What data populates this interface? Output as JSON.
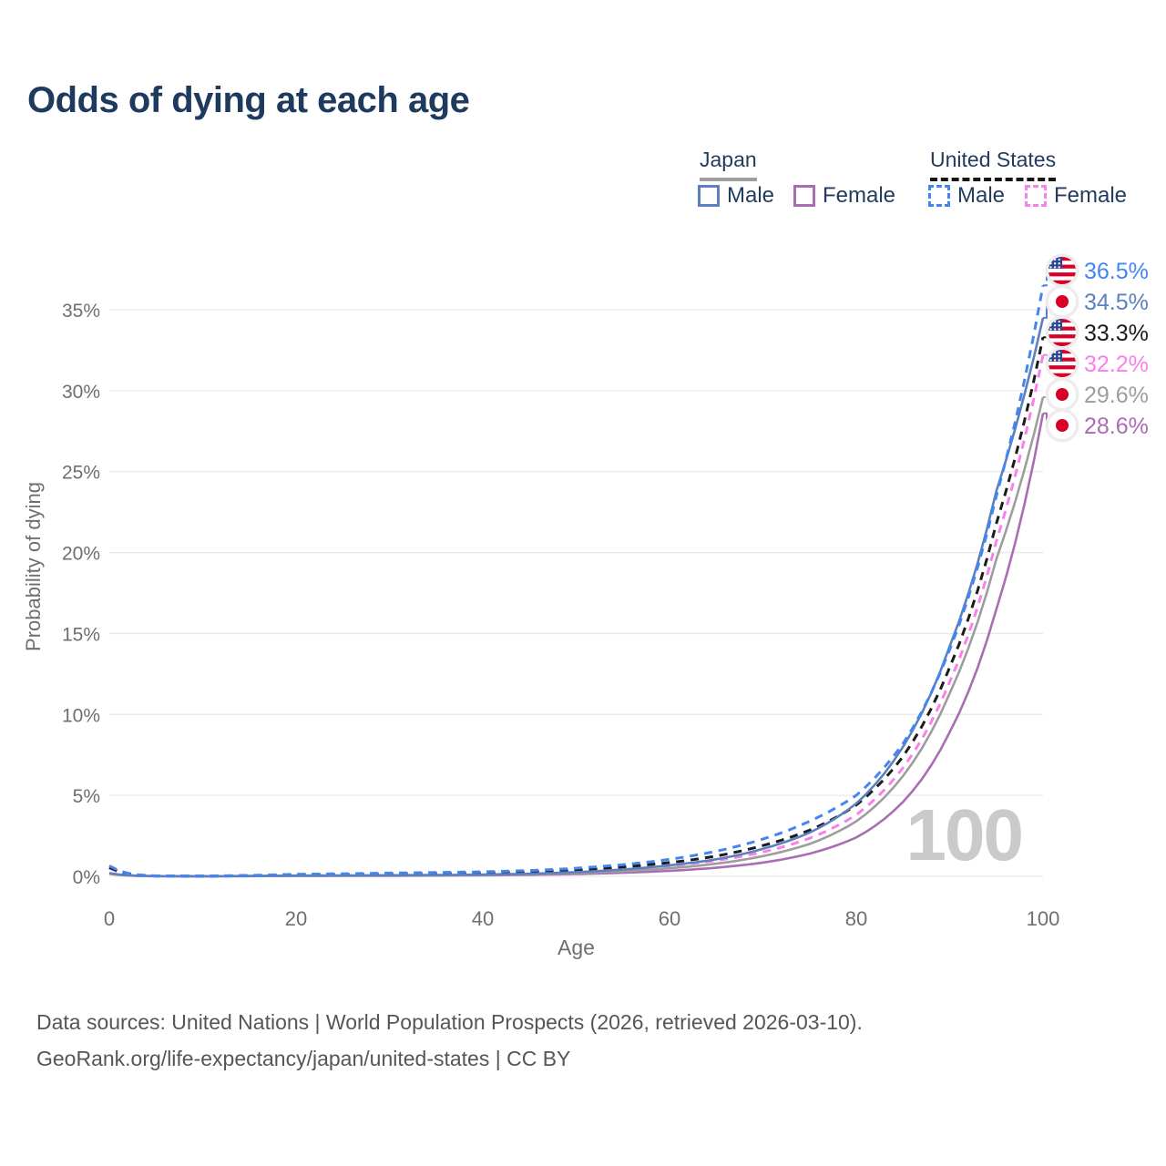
{
  "header": {
    "title": "Odds of dying at each age"
  },
  "legend": {
    "japan": {
      "label": "Japan",
      "male_label": "Male",
      "female_label": "Female"
    },
    "united_states": {
      "label": "United States",
      "male_label": "Male",
      "female_label": "Female"
    }
  },
  "footer": {
    "line1": "Data sources: United Nations | World Population Prospects (2026, retrieved 2026-03-10).",
    "line2": "GeoRank.org/life-expectancy/japan/united-states | CC BY"
  },
  "colors": {
    "title_text": "#1e3a5e",
    "legend_text": "#223c5e",
    "axis_text": "#6f6f6f",
    "gridline": "#e8e8e8",
    "watermark": "#cacaca",
    "footer_text": "#55565a",
    "japan_underline": "#9e9e9e",
    "us_underline": "#161616",
    "flag_red": "#d80027",
    "flag_blue": "#2e4593",
    "flag_badge": "#ededed"
  },
  "chart_data": {
    "type": "line",
    "title": "Odds of dying at each age",
    "xlabel": "Age",
    "ylabel": "Probability of dying",
    "xlim": [
      0,
      100
    ],
    "ylim": [
      0,
      37.5
    ],
    "grid": "horizontal",
    "age_indicator": "100",
    "x_ticks": [
      0,
      20,
      40,
      60,
      80,
      100
    ],
    "y_ticks": [
      {
        "value": 0,
        "label": "0%"
      },
      {
        "value": 5,
        "label": "5%"
      },
      {
        "value": 10,
        "label": "10%"
      },
      {
        "value": 15,
        "label": "15%"
      },
      {
        "value": 20,
        "label": "20%"
      },
      {
        "value": 25,
        "label": "25%"
      },
      {
        "value": 30,
        "label": "30%"
      },
      {
        "value": 35,
        "label": "35%"
      }
    ],
    "ages": [
      0,
      5,
      10,
      15,
      20,
      25,
      30,
      35,
      40,
      45,
      50,
      55,
      60,
      65,
      70,
      75,
      80,
      85,
      90,
      95,
      100
    ],
    "series": [
      {
        "id": "us-male",
        "group": "United States",
        "sex": "Male",
        "flag": "us",
        "style": "dashed",
        "color": "#4285f4",
        "end_label": "36.5%",
        "end_value": 36.5,
        "values": [
          0.65,
          0.03,
          0.02,
          0.06,
          0.13,
          0.16,
          0.2,
          0.24,
          0.28,
          0.36,
          0.5,
          0.72,
          1.05,
          1.55,
          2.3,
          3.4,
          5.0,
          8.2,
          14.0,
          23.5,
          36.5
        ]
      },
      {
        "id": "japan-male",
        "group": "Japan",
        "sex": "Male",
        "flag": "japan",
        "style": "solid",
        "color": "#5c80bd",
        "end_label": "34.5%",
        "end_value": 34.5,
        "values": [
          0.2,
          0.012,
          0.009,
          0.02,
          0.045,
          0.055,
          0.065,
          0.08,
          0.11,
          0.16,
          0.26,
          0.42,
          0.68,
          1.05,
          1.7,
          2.7,
          4.5,
          8.0,
          14.2,
          23.8,
          34.5
        ]
      },
      {
        "id": "us-all",
        "group": "United States",
        "sex": "All",
        "flag": "us",
        "style": "dashed",
        "color": "#1c1c1c",
        "end_label": "33.3%",
        "end_value": 33.3,
        "values": [
          0.55,
          0.025,
          0.016,
          0.045,
          0.09,
          0.12,
          0.15,
          0.18,
          0.22,
          0.29,
          0.4,
          0.58,
          0.85,
          1.25,
          1.9,
          2.85,
          4.4,
          7.4,
          12.9,
          21.8,
          33.3
        ]
      },
      {
        "id": "us-female",
        "group": "United States",
        "sex": "Female",
        "flag": "us",
        "style": "dashed",
        "color": "#f980ea",
        "end_label": "32.2%",
        "end_value": 32.2,
        "values": [
          0.5,
          0.02,
          0.013,
          0.03,
          0.055,
          0.07,
          0.09,
          0.12,
          0.16,
          0.22,
          0.31,
          0.44,
          0.65,
          0.98,
          1.5,
          2.35,
          3.8,
          6.7,
          12.0,
          20.7,
          32.2
        ]
      },
      {
        "id": "japan-all",
        "group": "Japan",
        "sex": "All",
        "flag": "japan",
        "style": "solid",
        "color": "#9d9d9d",
        "end_label": "29.6%",
        "end_value": 29.6,
        "values": [
          0.18,
          0.01,
          0.008,
          0.016,
          0.032,
          0.04,
          0.048,
          0.06,
          0.085,
          0.125,
          0.2,
          0.32,
          0.5,
          0.78,
          1.25,
          2.0,
          3.4,
          6.2,
          11.3,
          19.6,
          29.6
        ]
      },
      {
        "id": "japan-female",
        "group": "Japan",
        "sex": "Female",
        "flag": "japan",
        "style": "solid",
        "color": "#aa6db3",
        "end_label": "28.6%",
        "end_value": 28.6,
        "values": [
          0.16,
          0.009,
          0.007,
          0.013,
          0.022,
          0.027,
          0.033,
          0.045,
          0.062,
          0.092,
          0.14,
          0.22,
          0.34,
          0.53,
          0.85,
          1.4,
          2.4,
          4.6,
          8.9,
          16.5,
          28.6
        ]
      }
    ]
  }
}
